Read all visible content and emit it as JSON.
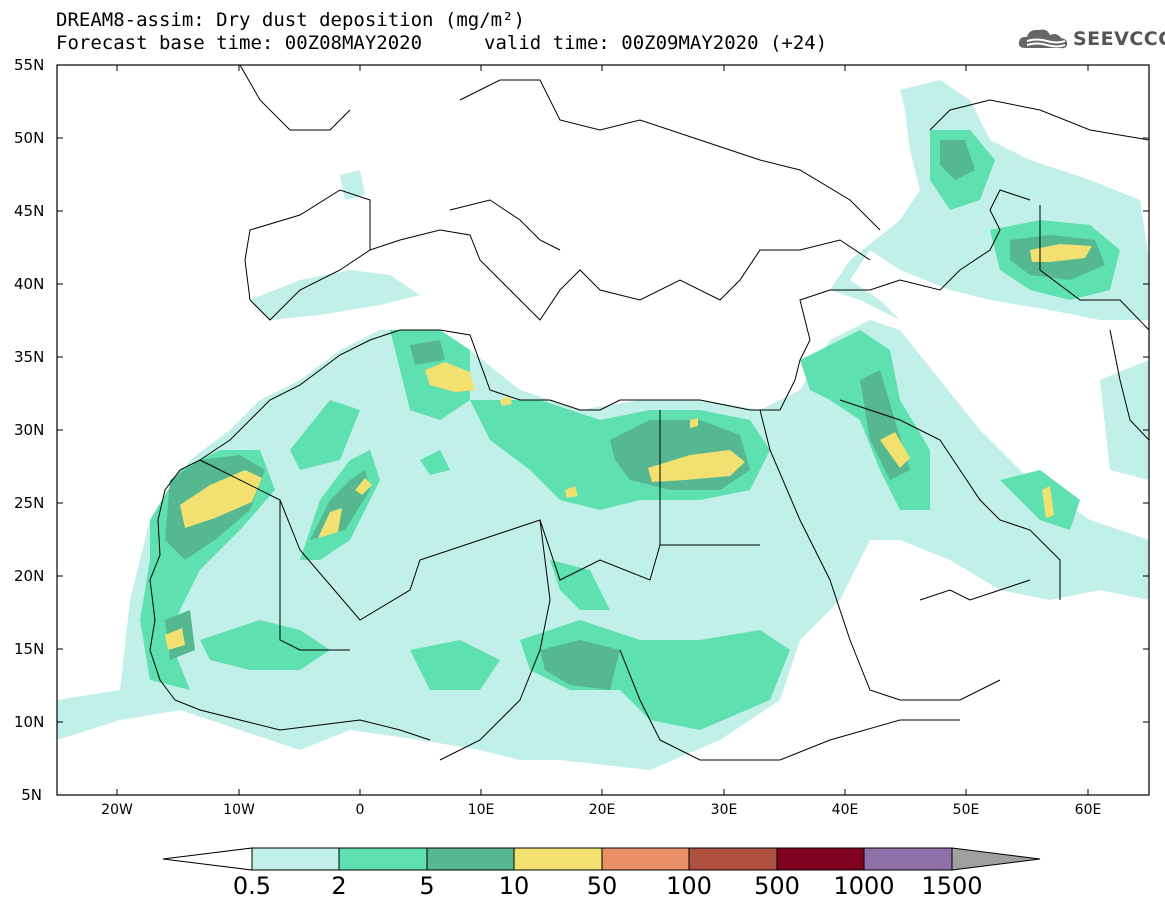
{
  "header": {
    "title_line1": "DREAM8-assim: Dry dust deposition (mg/m²)",
    "base_time": "Forecast base time: 00Z08MAY2020",
    "valid_time": "valid time: 00Z09MAY2020 (+24)",
    "logo_text": "SEEVCCC"
  },
  "axes": {
    "lat_ticks": [
      "55N",
      "50N",
      "45N",
      "40N",
      "35N",
      "30N",
      "25N",
      "20N",
      "15N",
      "10N",
      "5N"
    ],
    "lon_ticks": [
      "20W",
      "10W",
      "0",
      "10E",
      "20E",
      "30E",
      "40E",
      "50E",
      "60E"
    ]
  },
  "colorbar": {
    "labels": [
      "0.5",
      "2",
      "5",
      "10",
      "50",
      "100",
      "500",
      "1000",
      "1500"
    ],
    "colors": [
      "#c0f0e8",
      "#5fe0b0",
      "#55b890",
      "#f2e070",
      "#e89068",
      "#b05040",
      "#800020",
      "#9070a8"
    ],
    "under_color": "#ffffff",
    "over_color": "#a0a0a0"
  },
  "palette": {
    "border": "#000000",
    "background": "#ffffff"
  }
}
